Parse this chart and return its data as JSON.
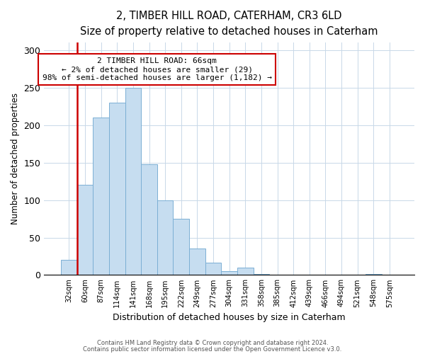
{
  "title": "2, TIMBER HILL ROAD, CATERHAM, CR3 6LD",
  "subtitle": "Size of property relative to detached houses in Caterham",
  "xlabel": "Distribution of detached houses by size in Caterham",
  "ylabel": "Number of detached properties",
  "bar_labels": [
    "32sqm",
    "60sqm",
    "87sqm",
    "114sqm",
    "141sqm",
    "168sqm",
    "195sqm",
    "222sqm",
    "249sqm",
    "277sqm",
    "304sqm",
    "331sqm",
    "358sqm",
    "385sqm",
    "412sqm",
    "439sqm",
    "466sqm",
    "494sqm",
    "521sqm",
    "548sqm",
    "575sqm"
  ],
  "bar_values": [
    20,
    120,
    210,
    230,
    250,
    148,
    100,
    75,
    35,
    16,
    5,
    10,
    1,
    0,
    0,
    0,
    0,
    0,
    0,
    1,
    0
  ],
  "bar_color": "#c6ddf0",
  "bar_edge_color": "#7bafd4",
  "highlight_color": "#cc0000",
  "annotation_title": "2 TIMBER HILL ROAD: 66sqm",
  "annotation_line1": "← 2% of detached houses are smaller (29)",
  "annotation_line2": "98% of semi-detached houses are larger (1,182) →",
  "annotation_box_color": "#ffffff",
  "annotation_box_edge": "#cc0000",
  "vline_x_index": 1,
  "ylim": [
    0,
    310
  ],
  "yticks": [
    0,
    50,
    100,
    150,
    200,
    250,
    300
  ],
  "footer1": "Contains HM Land Registry data © Crown copyright and database right 2024.",
  "footer2": "Contains public sector information licensed under the Open Government Licence v3.0."
}
